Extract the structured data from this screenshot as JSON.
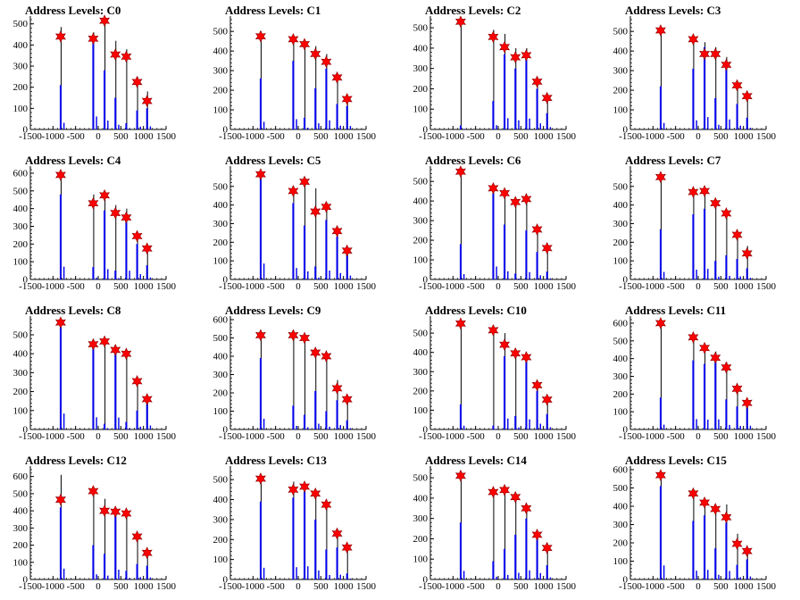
{
  "chart_data": [
    {
      "type": "bar",
      "title": "Address Levels: C0",
      "xlim": [
        -1500,
        1500
      ],
      "ylim": [
        0,
        520
      ],
      "yticks": [
        0,
        100,
        200,
        300,
        400,
        500
      ],
      "xticks": [
        -1500,
        -1000,
        -500,
        0,
        500,
        1000,
        1500
      ],
      "x": [
        -830,
        -110,
        140,
        380,
        620,
        860,
        1080
      ],
      "values": [
        485,
        460,
        500,
        420,
        380,
        250,
        180
      ],
      "blue": [
        210,
        410,
        280,
        150,
        30,
        90,
        100
      ],
      "markers": [
        440,
        430,
        515,
        355,
        345,
        225,
        135
      ]
    },
    {
      "type": "bar",
      "title": "Address Levels: C1",
      "xlim": [
        -1500,
        1500
      ],
      "ylim": [
        0,
        560
      ],
      "yticks": [
        0,
        100,
        200,
        300,
        400,
        500
      ],
      "xticks": [
        -1500,
        -1000,
        -500,
        0,
        500,
        1000,
        1500
      ],
      "x": [
        -830,
        -110,
        140,
        380,
        620,
        860,
        1080
      ],
      "values": [
        500,
        470,
        450,
        425,
        385,
        280,
        160
      ],
      "blue": [
        260,
        350,
        60,
        210,
        310,
        130,
        120
      ],
      "markers": [
        475,
        460,
        435,
        385,
        345,
        265,
        155
      ]
    },
    {
      "type": "bar",
      "title": "Address Levels: C2",
      "xlim": [
        -1500,
        1500
      ],
      "ylim": [
        0,
        540
      ],
      "yticks": [
        0,
        100,
        200,
        300,
        400,
        500
      ],
      "xticks": [
        -1500,
        -1000,
        -500,
        0,
        500,
        1000,
        1500
      ],
      "x": [
        -830,
        -110,
        140,
        380,
        620,
        860,
        1080
      ],
      "values": [
        540,
        490,
        470,
        400,
        400,
        240,
        160
      ],
      "blue": [
        20,
        140,
        370,
        300,
        360,
        200,
        80
      ],
      "markers": [
        530,
        455,
        405,
        355,
        365,
        235,
        155
      ]
    },
    {
      "type": "bar",
      "title": "Address Levels: C3",
      "xlim": [
        -1500,
        1500
      ],
      "ylim": [
        0,
        560
      ],
      "yticks": [
        0,
        100,
        200,
        300,
        400,
        500
      ],
      "xticks": [
        -1500,
        -1000,
        -500,
        0,
        500,
        1000,
        1500
      ],
      "x": [
        -830,
        -110,
        140,
        380,
        620,
        860,
        1080
      ],
      "values": [
        525,
        470,
        445,
        420,
        370,
        245,
        180
      ],
      "blue": [
        220,
        310,
        420,
        160,
        340,
        130,
        60
      ],
      "markers": [
        505,
        460,
        385,
        385,
        330,
        225,
        170
      ]
    },
    {
      "type": "bar",
      "title": "Address Levels: C4",
      "xlim": [
        -1500,
        1500
      ],
      "ylim": [
        0,
        620
      ],
      "yticks": [
        0,
        100,
        200,
        300,
        400,
        500,
        600
      ],
      "xticks": [
        -1500,
        -1000,
        -500,
        0,
        500,
        1000,
        1500
      ],
      "x": [
        -830,
        -110,
        140,
        380,
        620,
        860,
        1080
      ],
      "values": [
        610,
        480,
        460,
        420,
        400,
        250,
        180
      ],
      "blue": [
        480,
        70,
        390,
        50,
        330,
        200,
        80
      ],
      "markers": [
        590,
        430,
        475,
        375,
        350,
        245,
        175
      ]
    },
    {
      "type": "bar",
      "title": "Address Levels: C5",
      "xlim": [
        -1500,
        1500
      ],
      "ylim": [
        0,
        590
      ],
      "yticks": [
        0,
        100,
        200,
        300,
        400,
        500
      ],
      "xticks": [
        -1500,
        -1000,
        -500,
        0,
        500,
        1000,
        1500
      ],
      "x": [
        -830,
        -110,
        140,
        380,
        620,
        860,
        1080
      ],
      "values": [
        580,
        490,
        530,
        490,
        400,
        270,
        160
      ],
      "blue": [
        570,
        410,
        290,
        70,
        320,
        230,
        140
      ],
      "markers": [
        565,
        475,
        525,
        365,
        390,
        260,
        155
      ]
    },
    {
      "type": "bar",
      "title": "Address Levels: C6",
      "xlim": [
        -1500,
        1500
      ],
      "ylim": [
        0,
        560
      ],
      "yticks": [
        0,
        100,
        200,
        300,
        400,
        500
      ],
      "xticks": [
        -1500,
        -1000,
        -500,
        0,
        500,
        1000,
        1500
      ],
      "x": [
        -830,
        -110,
        140,
        380,
        620,
        860,
        1080
      ],
      "values": [
        570,
        470,
        450,
        410,
        420,
        260,
        170
      ],
      "blue": [
        180,
        440,
        280,
        30,
        250,
        140,
        40
      ],
      "markers": [
        550,
        465,
        440,
        395,
        410,
        255,
        160
      ]
    },
    {
      "type": "bar",
      "title": "Address Levels: C7",
      "xlim": [
        -1500,
        1500
      ],
      "ylim": [
        0,
        590
      ],
      "yticks": [
        0,
        100,
        200,
        300,
        400,
        500
      ],
      "xticks": [
        -1500,
        -1000,
        -500,
        0,
        500,
        1000,
        1500
      ],
      "x": [
        -830,
        -110,
        140,
        380,
        620,
        860,
        1080
      ],
      "values": [
        575,
        480,
        480,
        420,
        370,
        250,
        180
      ],
      "blue": [
        270,
        350,
        380,
        100,
        130,
        110,
        60
      ],
      "markers": [
        550,
        470,
        475,
        410,
        355,
        240,
        140
      ]
    },
    {
      "type": "bar",
      "title": "Address Levels: C8",
      "xlim": [
        -1500,
        1500
      ],
      "ylim": [
        0,
        580
      ],
      "yticks": [
        0,
        100,
        200,
        300,
        400,
        500
      ],
      "xticks": [
        -1500,
        -1000,
        -500,
        0,
        500,
        1000,
        1500
      ],
      "x": [
        -830,
        -110,
        140,
        380,
        620,
        860,
        1080
      ],
      "values": [
        580,
        460,
        470,
        430,
        410,
        270,
        170
      ],
      "blue": [
        560,
        430,
        30,
        420,
        40,
        100,
        140
      ],
      "markers": [
        565,
        450,
        465,
        420,
        400,
        255,
        160
      ]
    },
    {
      "type": "bar",
      "title": "Address Levels: C9",
      "xlim": [
        -1500,
        1500
      ],
      "ylim": [
        0,
        600
      ],
      "yticks": [
        0,
        100,
        200,
        300,
        400,
        500,
        600
      ],
      "xticks": [
        -1500,
        -1000,
        -500,
        0,
        500,
        1000,
        1500
      ],
      "x": [
        -830,
        -110,
        140,
        380,
        620,
        860,
        1080
      ],
      "values": [
        540,
        530,
        510,
        420,
        410,
        270,
        170
      ],
      "blue": [
        390,
        130,
        80,
        210,
        100,
        160,
        50
      ],
      "markers": [
        515,
        515,
        500,
        420,
        400,
        225,
        165
      ]
    },
    {
      "type": "bar",
      "title": "Address Levels: C10",
      "xlim": [
        -1500,
        1500
      ],
      "ylim": [
        0,
        570
      ],
      "yticks": [
        0,
        100,
        200,
        300,
        400,
        500
      ],
      "xticks": [
        -1500,
        -1000,
        -500,
        0,
        500,
        1000,
        1500
      ],
      "x": [
        -830,
        -110,
        140,
        380,
        620,
        860,
        1080
      ],
      "values": [
        570,
        520,
        500,
        410,
        380,
        250,
        170
      ],
      "blue": [
        130,
        20,
        380,
        70,
        350,
        200,
        80
      ],
      "markers": [
        550,
        515,
        440,
        395,
        375,
        230,
        155
      ]
    },
    {
      "type": "bar",
      "title": "Address Levels: C11",
      "xlim": [
        -1500,
        1500
      ],
      "ylim": [
        0,
        620
      ],
      "yticks": [
        0,
        100,
        200,
        300,
        400,
        500,
        600
      ],
      "xticks": [
        -1500,
        -1000,
        -500,
        0,
        500,
        1000,
        1500
      ],
      "x": [
        -830,
        -110,
        140,
        380,
        620,
        860,
        1080
      ],
      "values": [
        620,
        540,
        480,
        440,
        380,
        250,
        170
      ],
      "blue": [
        180,
        390,
        370,
        380,
        170,
        130,
        140
      ],
      "markers": [
        600,
        520,
        460,
        405,
        350,
        230,
        150
      ]
    },
    {
      "type": "bar",
      "title": "Address Levels: C12",
      "xlim": [
        -1500,
        1500
      ],
      "ylim": [
        0,
        640
      ],
      "yticks": [
        0,
        100,
        200,
        300,
        400,
        500,
        600
      ],
      "xticks": [
        -1500,
        -1000,
        -500,
        0,
        500,
        1000,
        1500
      ],
      "x": [
        -830,
        -110,
        140,
        380,
        620,
        860,
        1080
      ],
      "values": [
        610,
        530,
        470,
        410,
        410,
        270,
        170
      ],
      "blue": [
        420,
        200,
        150,
        380,
        50,
        90,
        80
      ],
      "markers": [
        465,
        515,
        400,
        395,
        385,
        250,
        155
      ]
    },
    {
      "type": "bar",
      "title": "Address Levels: C13",
      "xlim": [
        -1500,
        1500
      ],
      "ylim": [
        0,
        550
      ],
      "yticks": [
        0,
        100,
        200,
        300,
        400,
        500
      ],
      "xticks": [
        -1500,
        -1000,
        -500,
        0,
        500,
        1000,
        1500
      ],
      "x": [
        -830,
        -110,
        140,
        380,
        620,
        860,
        1080
      ],
      "values": [
        520,
        490,
        480,
        450,
        400,
        250,
        170
      ],
      "blue": [
        390,
        410,
        440,
        300,
        150,
        160,
        30
      ],
      "markers": [
        505,
        450,
        465,
        430,
        375,
        230,
        160
      ]
    },
    {
      "type": "bar",
      "title": "Address Levels: C14",
      "xlim": [
        -1500,
        1500
      ],
      "ylim": [
        0,
        540
      ],
      "yticks": [
        0,
        100,
        200,
        300,
        400,
        500
      ],
      "xticks": [
        -1500,
        -1000,
        -500,
        0,
        500,
        1000,
        1500
      ],
      "x": [
        -830,
        -110,
        140,
        380,
        620,
        860,
        1080
      ],
      "values": [
        520,
        450,
        460,
        420,
        370,
        240,
        170
      ],
      "blue": [
        280,
        90,
        150,
        220,
        300,
        210,
        70
      ],
      "markers": [
        510,
        430,
        440,
        405,
        350,
        220,
        155
      ]
    },
    {
      "type": "bar",
      "title": "Address Levels: C15",
      "xlim": [
        -1500,
        1500
      ],
      "ylim": [
        0,
        600
      ],
      "yticks": [
        0,
        100,
        200,
        300,
        400,
        500,
        600
      ],
      "xticks": [
        -1500,
        -1000,
        -500,
        0,
        500,
        1000,
        1500
      ],
      "x": [
        -830,
        -110,
        140,
        380,
        620,
        860,
        1080
      ],
      "values": [
        590,
        490,
        440,
        400,
        410,
        250,
        170
      ],
      "blue": [
        510,
        320,
        350,
        170,
        310,
        80,
        110
      ],
      "markers": [
        570,
        470,
        420,
        385,
        340,
        195,
        155
      ]
    }
  ],
  "colors": {
    "bar_outline": "#000000",
    "bar_fill": "#0000ee",
    "marker": "#ff0000",
    "marker_edge": "#880000",
    "axis": "#000000"
  }
}
